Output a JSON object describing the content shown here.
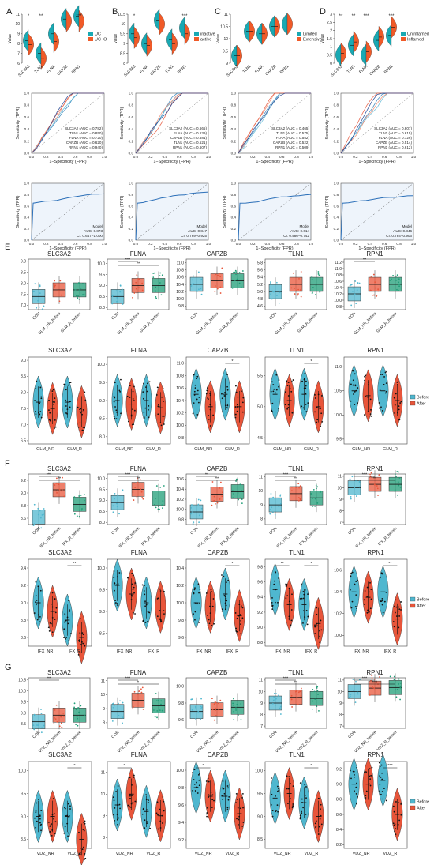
{
  "colors": {
    "teal": "#19a9b3",
    "orange": "#f05a28",
    "green": "#1f9e77",
    "light_blue": "#4fb7cf",
    "red": "#e8553a",
    "sig": "#111111"
  },
  "labels": {
    "panels": [
      "A",
      "B",
      "C",
      "D",
      "E",
      "F",
      "G"
    ],
    "value_axis": "Value",
    "roc_y": "Sensitivity (TPR)",
    "roc_x": "1−Specificity (FPR)",
    "roc_ticks": [
      "0.0",
      "0.2",
      "0.4",
      "0.6",
      "0.8",
      "1.0"
    ],
    "model": "Model",
    "before": "Before",
    "after": "After"
  },
  "chart_data": [
    {
      "panel": "A",
      "type": "violin",
      "categories": [
        "SLC3A2",
        "TLN1",
        "FLNA",
        "CAPZB",
        "RPN1"
      ],
      "legend": [
        "UC",
        "UC−O"
      ],
      "sig": [
        "*",
        "**",
        "",
        "",
        "***"
      ],
      "ylim": [
        6,
        11
      ],
      "yticks": [
        6,
        7,
        8,
        9,
        10,
        11
      ],
      "series": [
        {
          "name": "UC",
          "values": [
            8.3,
            7.0,
            9.0,
            10.5,
            10.8
          ]
        },
        {
          "name": "UC−O",
          "values": [
            7.9,
            6.5,
            8.2,
            10.3,
            10.3
          ]
        }
      ]
    },
    {
      "panel": "B",
      "type": "violin",
      "categories": [
        "SLC3A2",
        "FLNA",
        "CAPZB",
        "TLN1",
        "RPN1"
      ],
      "legend": [
        "inactive",
        "active"
      ],
      "sig": [
        "*",
        "",
        "",
        "",
        "***"
      ],
      "ylim": [
        8,
        10.5
      ],
      "yticks": [
        8,
        8.5,
        9,
        9.5,
        10,
        10.5
      ],
      "series": [
        {
          "name": "inactive",
          "values": [
            9.5,
            9.0,
            10.2,
            9.2,
            9.8
          ]
        },
        {
          "name": "active",
          "values": [
            9.3,
            8.9,
            10.0,
            9.0,
            9.5
          ]
        }
      ]
    },
    {
      "panel": "C",
      "type": "violin",
      "categories": [
        "SLC3A2",
        "TLN1",
        "FLNA",
        "CAPZB",
        "RPN1"
      ],
      "legend": [
        "Limited",
        "Extensive"
      ],
      "sig": [
        "",
        "",
        "",
        "",
        ""
      ],
      "ylim": [
        9,
        11
      ],
      "yticks": [
        9,
        9.5,
        10,
        10.5,
        11
      ],
      "series": [
        {
          "name": "Limited",
          "values": [
            9.3,
            10.3,
            10.2,
            10.5,
            10.6
          ]
        },
        {
          "name": "Extensive",
          "values": [
            9.3,
            10.3,
            10.2,
            10.5,
            10.6
          ]
        }
      ]
    },
    {
      "panel": "D",
      "type": "violin",
      "categories": [
        "SLC3A2",
        "TLN1",
        "FLNA",
        "CAPZB",
        "RPN1"
      ],
      "legend": [
        "Uninflamed",
        "Inflamed"
      ],
      "sig": [
        "**",
        "**",
        "***",
        "",
        "***"
      ],
      "ylim": [
        0,
        3
      ],
      "yticks": [
        0,
        0.5,
        1,
        1.5,
        2,
        2.5,
        3
      ],
      "series": [
        {
          "name": "Uninflamed",
          "values": [
            0.5,
            1.1,
            0.5,
            1.4,
            1.7
          ]
        },
        {
          "name": "Inflamed",
          "values": [
            0.6,
            1.3,
            0.7,
            1.6,
            2.2
          ]
        }
      ]
    },
    {
      "panel": "A",
      "type": "roc",
      "entries": [
        "SLC3A2 (AUC = 0.782)",
        "TLN1 (AUC = 0.850)",
        "FLNA (AUC = 0.720)",
        "CAPZB (AUC = 0.620)",
        "RPN1 (AUC = 0.940)"
      ]
    },
    {
      "panel": "B",
      "type": "roc",
      "entries": [
        "SLC3A2 (AUC = 0.665)",
        "FLNA (AUC = 0.639)",
        "CAPZB (AUC = 0.581)",
        "TLN1 (AUC = 0.521)",
        "RPN1 (AUC = 0.607)"
      ]
    },
    {
      "panel": "C",
      "type": "roc",
      "entries": [
        "SLC3A2 (AUC = 0.465)",
        "TLN1 (AUC = 0.575)",
        "FLNA (AUC = 0.552)",
        "CAPZB (AUC = 0.522)",
        "RPN1 (AUC = 0.509)"
      ]
    },
    {
      "panel": "D",
      "type": "roc",
      "entries": [
        "SLC3A2 (AUC = 0.807)",
        "TLN1 (AUC = 0.615)",
        "FLNA (AUC = 0.726)",
        "CAPZB (AUC = 0.514)",
        "RPN1 (AUC = 0.612)"
      ]
    },
    {
      "panel": "A",
      "type": "roc_model",
      "auc": "AUC: 0.873",
      "ci": "CI: 0.647−1.000"
    },
    {
      "panel": "B",
      "type": "roc_model",
      "auc": "AUC: 0.847",
      "ci": "CI: 0.769−0.925"
    },
    {
      "panel": "C",
      "type": "roc_model",
      "auc": "AUC: 0.614",
      "ci": "CI: 0.486−0.742"
    },
    {
      "panel": "D",
      "type": "roc_model",
      "auc": "AUC: 0.846",
      "ci": "CI: 0.784−0.906"
    },
    {
      "panel": "E",
      "type": "box",
      "gene": "SLC3A2",
      "categories": [
        "CON",
        "GLM_NR_before",
        "GLM_R_before"
      ],
      "sig": [],
      "yticks": [
        "7.0",
        "7.5",
        "8.0",
        "8.5",
        "9.0"
      ],
      "ylim": [
        6.8,
        9.1
      ],
      "medians": [
        7.4,
        7.7,
        7.7
      ]
    },
    {
      "panel": "E",
      "type": "box",
      "gene": "FLNA",
      "categories": [
        "CON",
        "GLM_NR_before",
        "GLM_R_before"
      ],
      "sig": [
        "***",
        "**"
      ],
      "yticks": [
        "8.0",
        "8.5",
        "9.0",
        "9.5",
        "10.0"
      ],
      "ylim": [
        7.9,
        10.2
      ],
      "medians": [
        8.5,
        9.0,
        9.0
      ]
    },
    {
      "panel": "E",
      "type": "box",
      "gene": "CAPZB",
      "categories": [
        "CON",
        "GLM_NR_before",
        "GLM_R_before"
      ],
      "sig": [],
      "yticks": [
        "9.8",
        "10.0",
        "10.2",
        "10.4",
        "10.6",
        "10.8",
        "11.0"
      ],
      "ylim": [
        9.7,
        11.1
      ],
      "medians": [
        10.4,
        10.5,
        10.5
      ]
    },
    {
      "panel": "E",
      "type": "box",
      "gene": "TLN1",
      "categories": [
        "CON",
        "GLM_NR_before",
        "GLM_R_before"
      ],
      "sig": [],
      "yticks": [
        "4.6",
        "4.8",
        "5.0",
        "5.2",
        "5.4",
        "5.6",
        "5.8"
      ],
      "ylim": [
        4.5,
        5.9
      ],
      "medians": [
        5.0,
        5.2,
        5.2
      ]
    },
    {
      "panel": "E",
      "type": "box",
      "gene": "RPN1",
      "categories": [
        "CON",
        "GLM_NR_before",
        "GLM_R_before"
      ],
      "sig": [
        "**"
      ],
      "yticks": [
        "9.8",
        "10.0",
        "10.2",
        "10.4",
        "10.6",
        "10.8",
        "11.0",
        "11.2"
      ],
      "ylim": [
        9.7,
        11.3
      ],
      "medians": [
        10.2,
        10.5,
        10.5
      ]
    },
    {
      "panel": "E",
      "type": "paired_violin",
      "gene": "SLC3A2",
      "categories": [
        "GLM_NR",
        "GLM_R"
      ],
      "sig": [],
      "yticks": [
        "6.5",
        "7.0",
        "7.5",
        "8.0",
        "8.5",
        "9.0"
      ],
      "ylim": [
        6.4,
        9.1
      ],
      "before": [
        7.7,
        7.7
      ],
      "after": [
        7.5,
        7.4
      ]
    },
    {
      "panel": "E",
      "type": "paired_violin",
      "gene": "FLNA",
      "categories": [
        "GLM_NR",
        "GLM_R"
      ],
      "sig": [],
      "yticks": [
        "8.0",
        "8.5",
        "9.0",
        "9.5",
        "10.0"
      ],
      "ylim": [
        7.8,
        10.2
      ],
      "before": [
        9.0,
        9.0
      ],
      "after": [
        8.9,
        8.8
      ]
    },
    {
      "panel": "E",
      "type": "paired_violin",
      "gene": "CAPZB",
      "categories": [
        "GLM_NR",
        "GLM_R"
      ],
      "sig": [
        "",
        "*"
      ],
      "yticks": [
        "9.8",
        "10.0",
        "10.2",
        "10.4",
        "10.6",
        "10.8",
        "11.0"
      ],
      "ylim": [
        9.7,
        11.1
      ],
      "before": [
        10.5,
        10.5
      ],
      "after": [
        10.3,
        10.3
      ]
    },
    {
      "panel": "E",
      "type": "paired_violin",
      "gene": "TLN1",
      "categories": [
        "GLM_NR",
        "GLM_R"
      ],
      "sig": [
        "",
        "*"
      ],
      "yticks": [
        "4.5",
        "5.0",
        "5.5"
      ],
      "ylim": [
        4.4,
        5.8
      ],
      "before": [
        5.2,
        5.2
      ],
      "after": [
        5.1,
        5.0
      ]
    },
    {
      "panel": "E",
      "type": "paired_violin",
      "gene": "RPN1",
      "categories": [
        "GLM_NR",
        "GLM_R"
      ],
      "sig": [],
      "yticks": [
        "9.5",
        "10.0",
        "10.5",
        "11.0"
      ],
      "ylim": [
        9.4,
        11.2
      ],
      "before": [
        10.5,
        10.5
      ],
      "after": [
        10.4,
        10.3
      ]
    },
    {
      "panel": "F",
      "type": "box",
      "gene": "SLC3A2",
      "categories": [
        "CON",
        "IFX_NR_before",
        "IFX_R_before"
      ],
      "sig": [
        "***",
        "**"
      ],
      "yticks": [
        "8.6",
        "8.8",
        "9.0",
        "9.2"
      ],
      "ylim": [
        8.5,
        9.3
      ],
      "medians": [
        8.62,
        9.05,
        8.82
      ]
    },
    {
      "panel": "F",
      "type": "box",
      "gene": "FLNA",
      "categories": [
        "CON",
        "IFX_NR_before",
        "IFX_R_before"
      ],
      "sig": [
        "***",
        "**"
      ],
      "yticks": [
        "8.0",
        "8.5",
        "9.0",
        "9.5",
        "10.0"
      ],
      "ylim": [
        7.9,
        10.2
      ],
      "medians": [
        8.9,
        9.5,
        9.1
      ]
    },
    {
      "panel": "F",
      "type": "box",
      "gene": "CAPZB",
      "categories": [
        "CON",
        "IFX_NR_before",
        "IFX_R_before"
      ],
      "sig": [
        "**",
        "**"
      ],
      "yticks": [
        "9.8",
        "10.0",
        "10.2",
        "10.4",
        "10.6"
      ],
      "ylim": [
        9.7,
        10.7
      ],
      "medians": [
        9.95,
        10.3,
        10.35
      ]
    },
    {
      "panel": "F",
      "type": "box",
      "gene": "TLN1",
      "categories": [
        "CON",
        "IFX_NR_before",
        "IFX_R_before"
      ],
      "sig": [
        "***",
        "**"
      ],
      "yticks": [
        "8",
        "9",
        "10",
        "11"
      ],
      "ylim": [
        7.6,
        11.2
      ],
      "medians": [
        9.0,
        9.8,
        9.5
      ]
    },
    {
      "panel": "F",
      "type": "box",
      "gene": "RPN1",
      "categories": [
        "CON",
        "IFX_NR_before",
        "IFX_R_before"
      ],
      "sig": [
        "***",
        "**"
      ],
      "yticks": [
        "7",
        "8",
        "9",
        "10",
        "11"
      ],
      "ylim": [
        6.8,
        11.2
      ],
      "medians": [
        10.0,
        10.3,
        10.3
      ]
    },
    {
      "panel": "F",
      "type": "paired_violin",
      "gene": "SLC3A2",
      "categories": [
        "IFX_NR",
        "IFX_R"
      ],
      "sig": [
        "",
        "**"
      ],
      "yticks": [
        "8.6",
        "8.8",
        "9.0",
        "9.2",
        "9.4"
      ],
      "ylim": [
        8.5,
        9.5
      ],
      "before": [
        9.0,
        8.8
      ],
      "after": [
        8.9,
        8.6
      ]
    },
    {
      "panel": "F",
      "type": "paired_violin",
      "gene": "FLNA",
      "categories": [
        "IFX_NR",
        "IFX_R"
      ],
      "sig": [],
      "yticks": [
        "8.5",
        "9.0",
        "9.5",
        "10.0"
      ],
      "ylim": [
        8.2,
        10.2
      ],
      "before": [
        9.6,
        9.2
      ],
      "after": [
        9.4,
        9.1
      ]
    },
    {
      "panel": "F",
      "type": "paired_violin",
      "gene": "CAPZB",
      "categories": [
        "IFX_NR",
        "IFX_R"
      ],
      "sig": [
        "",
        "*"
      ],
      "yticks": [
        "9.6",
        "9.8",
        "10.0",
        "10.2",
        "10.4"
      ],
      "ylim": [
        9.5,
        10.5
      ],
      "before": [
        10.0,
        10.1
      ],
      "after": [
        9.95,
        9.85
      ]
    },
    {
      "panel": "F",
      "type": "paired_violin",
      "gene": "TLN1",
      "categories": [
        "IFX_NR",
        "IFX_R"
      ],
      "sig": [
        "**",
        "*"
      ],
      "yticks": [
        "8.8",
        "9.0",
        "9.2",
        "9.4",
        "9.6",
        "9.8"
      ],
      "ylim": [
        8.75,
        9.9
      ],
      "before": [
        9.5,
        9.3
      ],
      "after": [
        9.3,
        9.05
      ]
    },
    {
      "panel": "F",
      "type": "paired_violin",
      "gene": "RPN1",
      "categories": [
        "IFX_NR",
        "IFX_R"
      ],
      "sig": [
        "",
        "**"
      ],
      "yticks": [
        "10.0",
        "10.2",
        "10.4",
        "10.6"
      ],
      "ylim": [
        9.9,
        10.7
      ],
      "before": [
        10.4,
        10.4
      ],
      "after": [
        10.35,
        10.15
      ]
    },
    {
      "panel": "G",
      "type": "box",
      "gene": "SLC3A2",
      "categories": [
        "CON",
        "VDZ_NR_before",
        "VDZ_R_before"
      ],
      "sig": [
        "**"
      ],
      "yticks": [
        "8.5",
        "9.0",
        "9.5",
        "10.0",
        "10.5"
      ],
      "ylim": [
        8.3,
        10.6
      ],
      "medians": [
        8.6,
        8.9,
        8.9
      ]
    },
    {
      "panel": "G",
      "type": "box",
      "gene": "FLNA",
      "categories": [
        "CON",
        "VDZ_NR_before",
        "VDZ_R_before"
      ],
      "sig": [
        "***",
        "*"
      ],
      "yticks": [
        "8",
        "9",
        "10",
        "11"
      ],
      "ylim": [
        7.6,
        11.2
      ],
      "medians": [
        8.8,
        9.6,
        9.2
      ]
    },
    {
      "panel": "G",
      "type": "box",
      "gene": "CAPZB",
      "categories": [
        "CON",
        "VDZ_NR_before",
        "VDZ_R_before"
      ],
      "sig": [],
      "yticks": [
        "9.6",
        "9.8",
        "10.0"
      ],
      "ylim": [
        9.5,
        10.1
      ],
      "medians": [
        9.7,
        9.72,
        9.75
      ]
    },
    {
      "panel": "G",
      "type": "box",
      "gene": "TLN1",
      "categories": [
        "CON",
        "VDZ_NR_before",
        "VDZ_R_before"
      ],
      "sig": [
        "***",
        "**"
      ],
      "yticks": [
        "7",
        "8",
        "9",
        "10",
        "11"
      ],
      "ylim": [
        6.8,
        11.2
      ],
      "medians": [
        9.0,
        9.5,
        9.4
      ]
    },
    {
      "panel": "G",
      "type": "box",
      "gene": "RPN1",
      "categories": [
        "CON",
        "VDZ_NR_before",
        "VDZ_R_before"
      ],
      "sig": [
        "***",
        "***"
      ],
      "yticks": [
        "7",
        "8",
        "9",
        "10",
        "11"
      ],
      "ylim": [
        6.8,
        11.2
      ],
      "medians": [
        10.0,
        10.3,
        10.35
      ]
    },
    {
      "panel": "G",
      "type": "paired_violin",
      "gene": "SLC3A2",
      "categories": [
        "VDZ_NR",
        "VDZ_R"
      ],
      "sig": [
        "",
        "*"
      ],
      "yticks": [
        "8.5",
        "9.0",
        "9.5",
        "10.0"
      ],
      "ylim": [
        8.3,
        10.2
      ],
      "before": [
        9.0,
        9.0
      ],
      "after": [
        9.0,
        8.5
      ]
    },
    {
      "panel": "G",
      "type": "paired_violin",
      "gene": "FLNA",
      "categories": [
        "VDZ_NR",
        "VDZ_R"
      ],
      "sig": [
        "*"
      ],
      "yticks": [
        "8",
        "9",
        "10",
        "11"
      ],
      "ylim": [
        7.5,
        11.5
      ],
      "before": [
        9.5,
        9.2
      ],
      "after": [
        10.0,
        9.0
      ]
    },
    {
      "panel": "G",
      "type": "paired_violin",
      "gene": "CAPZB",
      "categories": [
        "VDZ_NR",
        "VDZ_R"
      ],
      "sig": [
        "*"
      ],
      "yticks": [
        "9.2",
        "9.4",
        "9.6",
        "9.8",
        "10.0"
      ],
      "ylim": [
        9.1,
        10.1
      ],
      "before": [
        9.8,
        9.7
      ],
      "after": [
        9.7,
        9.5
      ]
    },
    {
      "panel": "G",
      "type": "paired_violin",
      "gene": "TLN1",
      "categories": [
        "VDZ_NR",
        "VDZ_R"
      ],
      "sig": [
        "",
        "*"
      ],
      "yticks": [
        "8.5",
        "9.0",
        "9.5",
        "10.0"
      ],
      "ylim": [
        8.3,
        10.2
      ],
      "before": [
        9.4,
        9.3
      ],
      "after": [
        9.5,
        9.0
      ]
    },
    {
      "panel": "G",
      "type": "paired_violin",
      "gene": "RPN1",
      "categories": [
        "VDZ_NR",
        "VDZ_R"
      ],
      "sig": [
        "",
        "***"
      ],
      "yticks": [
        "8.2",
        "8.4",
        "8.6",
        "8.8",
        "9.0",
        "9.2"
      ],
      "ylim": [
        8.15,
        9.3
      ],
      "before": [
        9.0,
        9.05
      ],
      "after": [
        9.0,
        8.6
      ]
    }
  ]
}
